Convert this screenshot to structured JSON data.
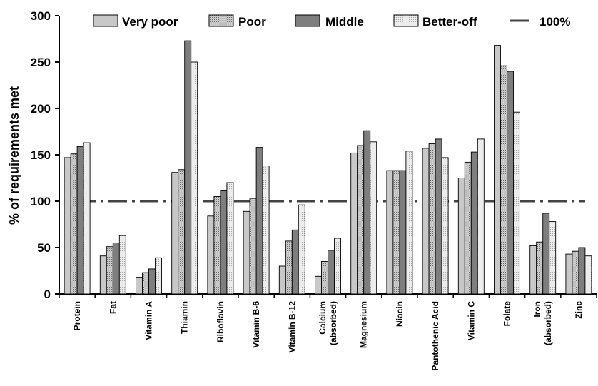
{
  "chart_data": {
    "type": "bar",
    "ylabel": "% of requirements met",
    "xlabel": "",
    "ylim": [
      0,
      300
    ],
    "yticks": [
      0,
      50,
      100,
      150,
      200,
      250,
      300
    ],
    "grid": false,
    "legend_position": "top",
    "categories": [
      [
        "Protein"
      ],
      [
        "Fat"
      ],
      [
        "Vitamin A"
      ],
      [
        "Thiamin"
      ],
      [
        "Riboflavin"
      ],
      [
        "Vitamin B-6"
      ],
      [
        "Vitamin B-12"
      ],
      [
        "Calcium",
        "(absorbed)"
      ],
      [
        "Magnesium"
      ],
      [
        "Niacin"
      ],
      [
        "Pantothenic Acid"
      ],
      [
        "Vitamin C"
      ],
      [
        "Folate"
      ],
      [
        "Iron",
        "(absorbed)"
      ],
      [
        "Zinc"
      ]
    ],
    "series": [
      {
        "name": "Very poor",
        "color": "#c8c8c8",
        "pattern": "solid",
        "values": [
          147,
          41,
          18,
          131,
          84,
          89,
          30,
          19,
          152,
          133,
          157,
          125,
          268,
          52,
          43
        ]
      },
      {
        "name": "Poor",
        "color": "#b4b4b4",
        "pattern": "dots",
        "values": [
          151,
          51,
          23,
          134,
          105,
          103,
          57,
          35,
          160,
          133,
          162,
          142,
          246,
          56,
          46
        ]
      },
      {
        "name": "Middle",
        "color": "#7e7e7e",
        "pattern": "solid",
        "values": [
          159,
          55,
          27,
          273,
          112,
          158,
          69,
          47,
          176,
          133,
          167,
          153,
          240,
          87,
          50
        ]
      },
      {
        "name": "Better-off",
        "color": "#e2e2e2",
        "pattern": "finedots",
        "values": [
          163,
          63,
          39,
          250,
          120,
          138,
          96,
          60,
          164,
          154,
          147,
          167,
          196,
          78,
          41
        ]
      }
    ],
    "reference_line": {
      "label": "100%",
      "value": 100,
      "color": "#444444"
    }
  }
}
